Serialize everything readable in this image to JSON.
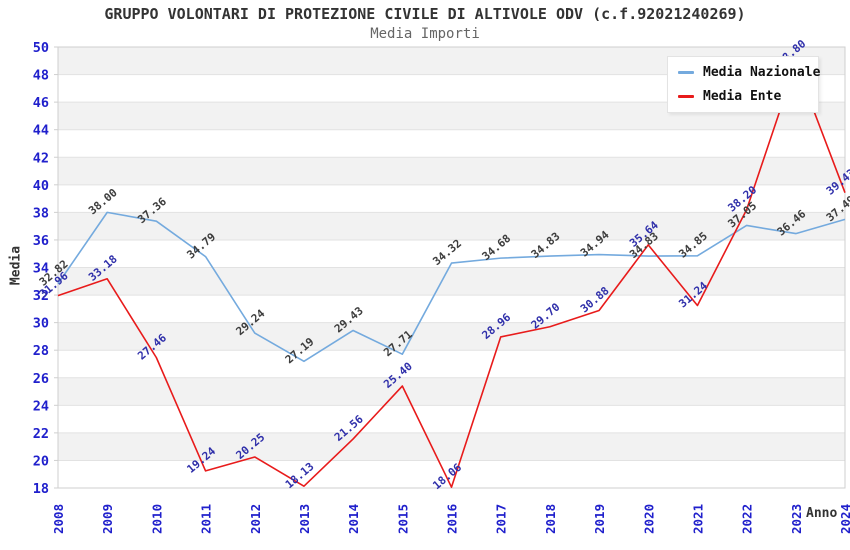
{
  "title": "GRUPPO VOLONTARI DI PROTEZIONE CIVILE DI ALTIVOLE ODV (c.f.92021240269)",
  "subtitle": "Media Importi",
  "chart_data": {
    "type": "line",
    "title": "Media Importi",
    "xlabel": "Anno",
    "ylabel": "Media",
    "x": [
      2008,
      2009,
      2010,
      2011,
      2012,
      2013,
      2014,
      2015,
      2016,
      2017,
      2018,
      2019,
      2020,
      2021,
      2022,
      2023,
      2024
    ],
    "series": [
      {
        "name": "Media Nazionale",
        "color": "#74aade",
        "label_color": "#3d3d3d",
        "values": [
          32.82,
          38.0,
          37.36,
          34.79,
          29.24,
          27.19,
          29.43,
          27.71,
          34.32,
          34.68,
          34.83,
          34.94,
          34.83,
          34.85,
          37.05,
          36.46,
          37.49
        ]
      },
      {
        "name": "Media Ente",
        "color": "#e81b1b",
        "label_color": "#3030aa",
        "values": [
          31.96,
          33.18,
          27.46,
          19.24,
          20.25,
          18.13,
          21.56,
          25.4,
          18.06,
          28.96,
          29.7,
          30.88,
          35.64,
          31.24,
          38.2,
          48.8,
          39.43
        ]
      }
    ],
    "ylim": [
      18,
      50
    ],
    "ytick_step": 2,
    "grid": true,
    "legend_position": "top-right",
    "colors": {
      "axis_tick": "#2020cc",
      "grid": "#e2e2e2",
      "band": "#f2f2f2",
      "plot_border": "#cfcfcf",
      "title": "#333333",
      "subtitle": "#666666"
    }
  }
}
